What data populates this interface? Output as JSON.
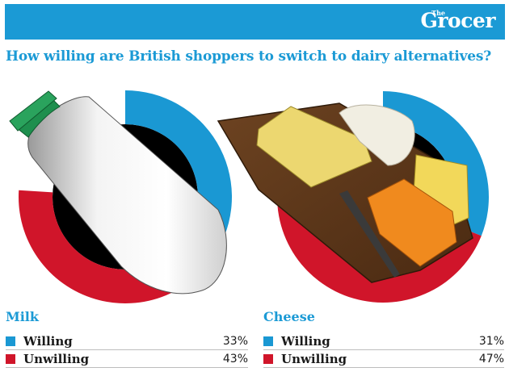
{
  "header": {
    "logo_small": "The",
    "logo_main": "Grocer"
  },
  "headline": "How willing are British shoppers to switch to dairy alternatives?",
  "colors": {
    "willing": "#1a98d3",
    "unwilling": "#d0152a",
    "header": "#1b9ad5"
  },
  "icons": [
    "milk-bottle-illustration",
    "cheese-board-illustration"
  ],
  "chart_data": [
    {
      "type": "pie",
      "title": "Milk",
      "categories": [
        "Willing",
        "Unwilling"
      ],
      "values": [
        33,
        43
      ],
      "labels": [
        "33%",
        "43%"
      ]
    },
    {
      "type": "pie",
      "title": "Cheese",
      "categories": [
        "Willing",
        "Unwilling"
      ],
      "values": [
        31,
        47
      ],
      "labels": [
        "31%",
        "47%"
      ]
    }
  ]
}
